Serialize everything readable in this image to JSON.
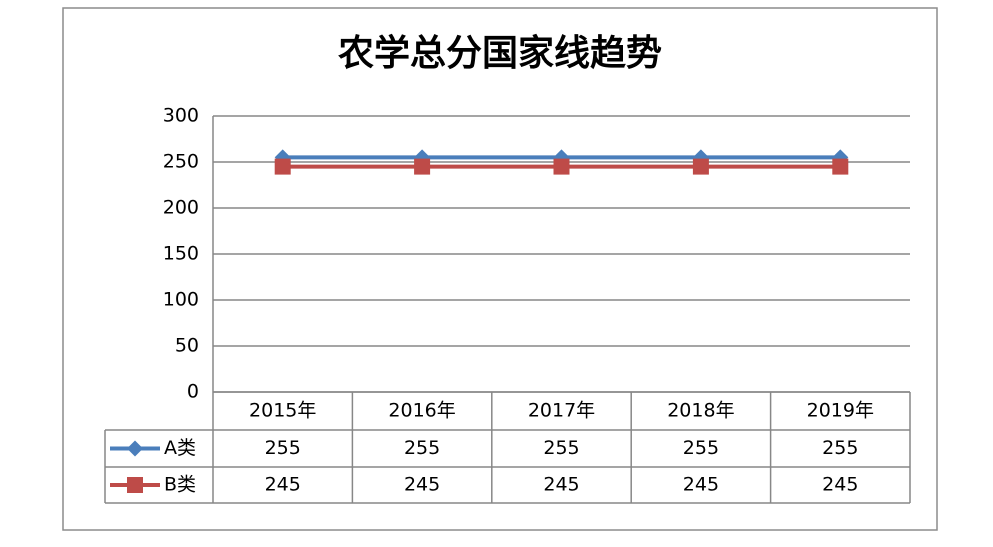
{
  "chart_data": {
    "type": "line",
    "title": "农学总分国家线趋势",
    "categories": [
      "2015年",
      "2016年",
      "2017年",
      "2018年",
      "2019年"
    ],
    "series": [
      {
        "name": "A类",
        "color": "#4a7ebb",
        "marker": "diamond",
        "values": [
          255,
          255,
          255,
          255,
          255
        ]
      },
      {
        "name": "B类",
        "color": "#be4b48",
        "marker": "square",
        "values": [
          245,
          245,
          245,
          245,
          245
        ]
      }
    ],
    "ylim": [
      0,
      300
    ],
    "yticks": [
      0,
      50,
      100,
      150,
      200,
      250,
      300
    ],
    "grid": true,
    "data_table": true
  }
}
